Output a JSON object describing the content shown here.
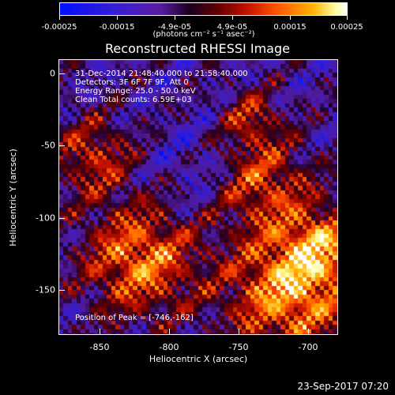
{
  "colorbar": {
    "tick_labels": [
      "-0.00025",
      "-0.00015",
      "-4.9e-05",
      "4.9e-05",
      "0.00015",
      "0.00025"
    ],
    "units_html": "(photons cm⁻² s⁻¹ asec⁻²)"
  },
  "title": "Reconstructed RHESSI Image",
  "info": {
    "time_range": "31-Dec-2014 21:48:40.000 to 21:58:40.000",
    "detectors": "Detectors: 3F 6F 7F 9F, Att 0",
    "energy": "Energy Range: 25.0 - 50.0 keV",
    "clean": "Clean     Total counts: 6.59E+03",
    "peak": "Position of Peak = [-746,-162]"
  },
  "axes": {
    "xlabel": "Heliocentric X (arcsec)",
    "ylabel": "Heliocentric Y (arcsec)",
    "xticks": [
      "-850",
      "-800",
      "-750",
      "-700"
    ],
    "yticks": [
      "0",
      "-50",
      "-100",
      "-150"
    ]
  },
  "timestamp": "23-Sep-2017 07:20"
}
